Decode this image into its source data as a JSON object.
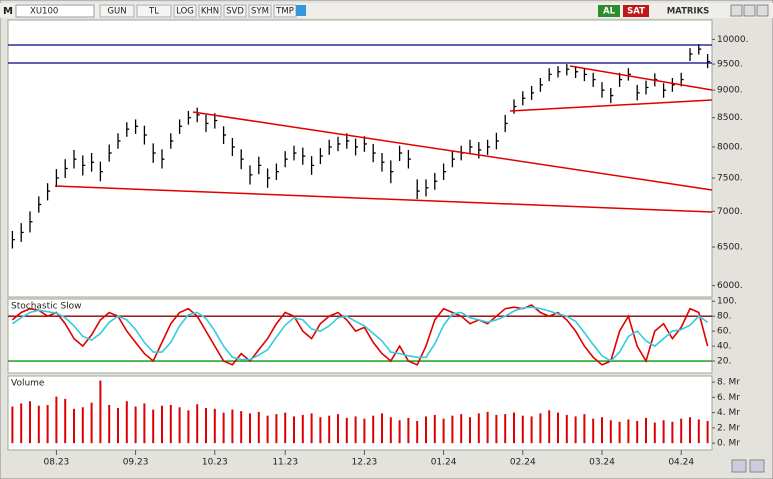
{
  "toolbar": {
    "symbol": "XU100",
    "items": [
      "GUN",
      "TL",
      "LOG",
      "KHN",
      "SVD",
      "SYM",
      "TMP"
    ],
    "buy": "AL",
    "sell": "SAT",
    "brand": "MATRIKS"
  },
  "chart_data": [
    {
      "type": "ohlc",
      "color": "#000000",
      "log": true,
      "ylim": [
        5860,
        10410
      ],
      "yticks": [
        {
          "value": 10000,
          "label": "10000."
        },
        {
          "value": 9500,
          "label": "9500."
        },
        {
          "value": 9000,
          "label": "9000."
        },
        {
          "value": 8500,
          "label": "8500."
        },
        {
          "value": 8000,
          "label": "8000."
        },
        {
          "value": 7500,
          "label": "7500."
        },
        {
          "value": 7000,
          "label": "7000."
        },
        {
          "value": 6500,
          "label": "6500."
        },
        {
          "value": 6000,
          "label": "6000."
        }
      ],
      "values": [
        6600,
        6700,
        6850,
        7100,
        7300,
        7500,
        7650,
        7800,
        7700,
        7750,
        7600,
        7900,
        8100,
        8300,
        8350,
        8200,
        7900,
        7800,
        8100,
        8350,
        8500,
        8550,
        8400,
        8450,
        8200,
        8000,
        7800,
        7550,
        7700,
        7500,
        7600,
        7800,
        7900,
        7850,
        7700,
        7850,
        8000,
        8050,
        8100,
        8000,
        8050,
        7900,
        7750,
        7600,
        7900,
        7800,
        7300,
        7350,
        7450,
        7600,
        7800,
        7900,
        8000,
        7950,
        8000,
        8100,
        8400,
        8700,
        8850,
        8950,
        9100,
        9300,
        9350,
        9400,
        9350,
        9300,
        9200,
        9000,
        8900,
        9200,
        9300,
        8950,
        9050,
        9200,
        9000,
        9100,
        9200,
        9700,
        9800,
        9550
      ],
      "high": [
        6720,
        6830,
        7000,
        7220,
        7420,
        7640,
        7800,
        7950,
        7860,
        7900,
        7760,
        8040,
        8230,
        8420,
        8470,
        8360,
        8060,
        7960,
        8230,
        8470,
        8620,
        8680,
        8550,
        8580,
        8350,
        8150,
        7960,
        7700,
        7840,
        7650,
        7730,
        7930,
        8020,
        7990,
        7850,
        7980,
        8120,
        8170,
        8230,
        8140,
        8180,
        8050,
        7900,
        7780,
        8020,
        7950,
        7480,
        7480,
        7580,
        7730,
        7930,
        8020,
        8120,
        8080,
        8120,
        8240,
        8550,
        8830,
        8980,
        9080,
        9230,
        9420,
        9460,
        9500,
        9460,
        9420,
        9330,
        9150,
        9040,
        9330,
        9420,
        9100,
        9180,
        9320,
        9130,
        9230,
        9330,
        9820,
        9900,
        9700
      ],
      "low": [
        6480,
        6570,
        6700,
        6980,
        7160,
        7360,
        7500,
        7650,
        7540,
        7600,
        7450,
        7760,
        7970,
        8170,
        8220,
        8040,
        7740,
        7650,
        7970,
        8220,
        8380,
        8420,
        8250,
        8310,
        8050,
        7850,
        7640,
        7400,
        7560,
        7350,
        7470,
        7670,
        7780,
        7710,
        7550,
        7720,
        7870,
        7930,
        7970,
        7860,
        7920,
        7750,
        7600,
        7420,
        7770,
        7650,
        7180,
        7220,
        7320,
        7470,
        7670,
        7780,
        7880,
        7810,
        7870,
        7960,
        8250,
        8570,
        8720,
        8820,
        8970,
        9170,
        9240,
        9280,
        9230,
        9170,
        9060,
        8860,
        8760,
        9060,
        9180,
        8810,
        8920,
        9070,
        8860,
        8970,
        9070,
        9560,
        9690,
        9420
      ]
    },
    {
      "type": "line",
      "title": "Stochastic Slow",
      "ylim": [
        4,
        103
      ],
      "yticks": [
        {
          "value": 100,
          "label": "100."
        },
        {
          "value": 80,
          "label": "80."
        },
        {
          "value": 60,
          "label": "60."
        },
        {
          "value": 40,
          "label": "40."
        },
        {
          "value": 20,
          "label": "20."
        }
      ],
      "levels": [
        {
          "value": 80,
          "color": "#8b0000"
        },
        {
          "value": 20,
          "color": "#009900"
        }
      ],
      "series": [
        {
          "color": "#e00000",
          "values": [
            75,
            85,
            90,
            88,
            80,
            85,
            70,
            50,
            40,
            55,
            75,
            85,
            80,
            60,
            45,
            30,
            20,
            45,
            70,
            85,
            90,
            80,
            60,
            40,
            20,
            15,
            30,
            20,
            35,
            50,
            70,
            85,
            80,
            60,
            50,
            70,
            80,
            85,
            75,
            60,
            65,
            45,
            30,
            20,
            40,
            20,
            15,
            40,
            75,
            90,
            85,
            80,
            70,
            75,
            70,
            80,
            90,
            92,
            90,
            95,
            85,
            80,
            85,
            75,
            60,
            40,
            25,
            15,
            20,
            60,
            80,
            40,
            20,
            60,
            70,
            50,
            65,
            90,
            85,
            40
          ]
        },
        {
          "color": "#33ccdd",
          "values": [
            70,
            78,
            85,
            88,
            86,
            84,
            78,
            67,
            53,
            48,
            57,
            72,
            80,
            75,
            62,
            45,
            32,
            32,
            45,
            67,
            82,
            85,
            77,
            60,
            40,
            25,
            22,
            22,
            28,
            35,
            52,
            68,
            78,
            75,
            63,
            60,
            67,
            78,
            80,
            73,
            67,
            57,
            47,
            32,
            30,
            27,
            25,
            25,
            43,
            68,
            83,
            85,
            78,
            75,
            72,
            75,
            80,
            87,
            91,
            92,
            90,
            87,
            83,
            80,
            73,
            58,
            42,
            27,
            20,
            32,
            53,
            60,
            47,
            40,
            50,
            60,
            62,
            68,
            80,
            72
          ]
        }
      ]
    },
    {
      "type": "bar",
      "title": "Volume",
      "color": "#dd0000",
      "ylim": [
        -0.9,
        8.8
      ],
      "yticks": [
        {
          "value": 8,
          "label": "8. Mr"
        },
        {
          "value": 6,
          "label": "6. Mr"
        },
        {
          "value": 4,
          "label": "4. Mr"
        },
        {
          "value": 2,
          "label": "2. Mr"
        },
        {
          "value": 0,
          "label": "0. Mr"
        }
      ],
      "categories": [
        null,
        null,
        null,
        null,
        null,
        "08.23",
        null,
        null,
        null,
        null,
        null,
        null,
        null,
        null,
        "09.23",
        null,
        null,
        null,
        null,
        null,
        null,
        null,
        null,
        "10.23",
        null,
        null,
        null,
        null,
        null,
        null,
        null,
        "11.23",
        null,
        null,
        null,
        null,
        null,
        null,
        null,
        null,
        "12.23",
        null,
        null,
        null,
        null,
        null,
        null,
        null,
        null,
        "01.24",
        null,
        null,
        null,
        null,
        null,
        null,
        null,
        null,
        "02.24",
        null,
        null,
        null,
        null,
        null,
        null,
        null,
        null,
        "03.24",
        null,
        null,
        null,
        null,
        null,
        null,
        null,
        null,
        "04.24",
        null,
        null,
        null
      ],
      "values": [
        4.8,
        5.2,
        5.5,
        4.9,
        5.0,
        6.1,
        5.8,
        4.5,
        4.7,
        5.3,
        8.2,
        5.0,
        4.6,
        5.5,
        4.8,
        5.2,
        4.4,
        4.9,
        5.0,
        4.7,
        4.3,
        5.1,
        4.6,
        4.5,
        4.0,
        4.4,
        4.2,
        3.9,
        4.1,
        3.6,
        3.8,
        4.0,
        3.5,
        3.7,
        3.9,
        3.4,
        3.6,
        3.8,
        3.3,
        3.5,
        3.2,
        3.6,
        3.9,
        3.4,
        3.0,
        3.3,
        2.9,
        3.5,
        3.7,
        3.2,
        3.6,
        3.8,
        3.4,
        3.9,
        4.1,
        3.7,
        3.8,
        4.0,
        3.6,
        3.5,
        3.9,
        4.3,
        4.0,
        3.7,
        3.5,
        3.8,
        3.2,
        3.4,
        3.0,
        2.8,
        3.1,
        2.9,
        3.3,
        2.7,
        3.0,
        2.8,
        3.2,
        3.4,
        3.1,
        2.9
      ]
    }
  ]
}
